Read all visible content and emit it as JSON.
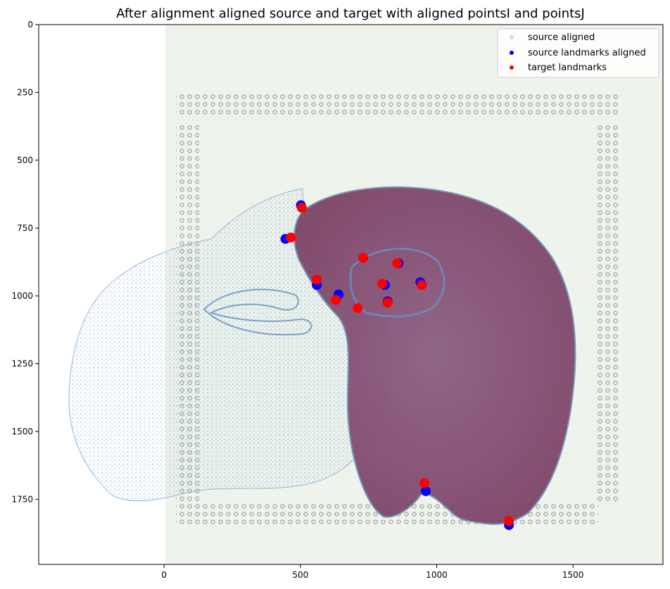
{
  "chart_data": {
    "type": "scatter",
    "title": "After alignment aligned source and target with aligned pointsI and pointsJ",
    "xlabel": "",
    "ylabel": "",
    "xlim": [
      -460,
      1830
    ],
    "ylim": [
      1990,
      0
    ],
    "y_inverted": true,
    "xticks": [
      0,
      500,
      1000,
      1500
    ],
    "yticks": [
      0,
      250,
      500,
      750,
      1000,
      1250,
      1500,
      1750
    ],
    "grid": false,
    "legend_position": "top-right",
    "background_image": "histology-section",
    "series": [
      {
        "name": "source aligned",
        "color": "#5a8fbf",
        "kind": "dense-point-cloud"
      },
      {
        "name": "source landmarks aligned",
        "color": "#0000ff",
        "points": [
          [
            502,
            666
          ],
          [
            445,
            790
          ],
          [
            560,
            960
          ],
          [
            640,
            995
          ],
          [
            730,
            860
          ],
          [
            810,
            960
          ],
          [
            820,
            1020
          ],
          [
            860,
            880
          ],
          [
            940,
            950
          ],
          [
            960,
            1720
          ],
          [
            1265,
            1845
          ]
        ]
      },
      {
        "name": "target landmarks",
        "color": "#ff0000",
        "points": [
          [
            505,
            675
          ],
          [
            465,
            785
          ],
          [
            560,
            940
          ],
          [
            630,
            1015
          ],
          [
            730,
            860
          ],
          [
            800,
            955
          ],
          [
            820,
            1025
          ],
          [
            855,
            880
          ],
          [
            945,
            960
          ],
          [
            955,
            1690
          ],
          [
            1265,
            1830
          ],
          [
            710,
            1045
          ]
        ]
      }
    ]
  }
}
